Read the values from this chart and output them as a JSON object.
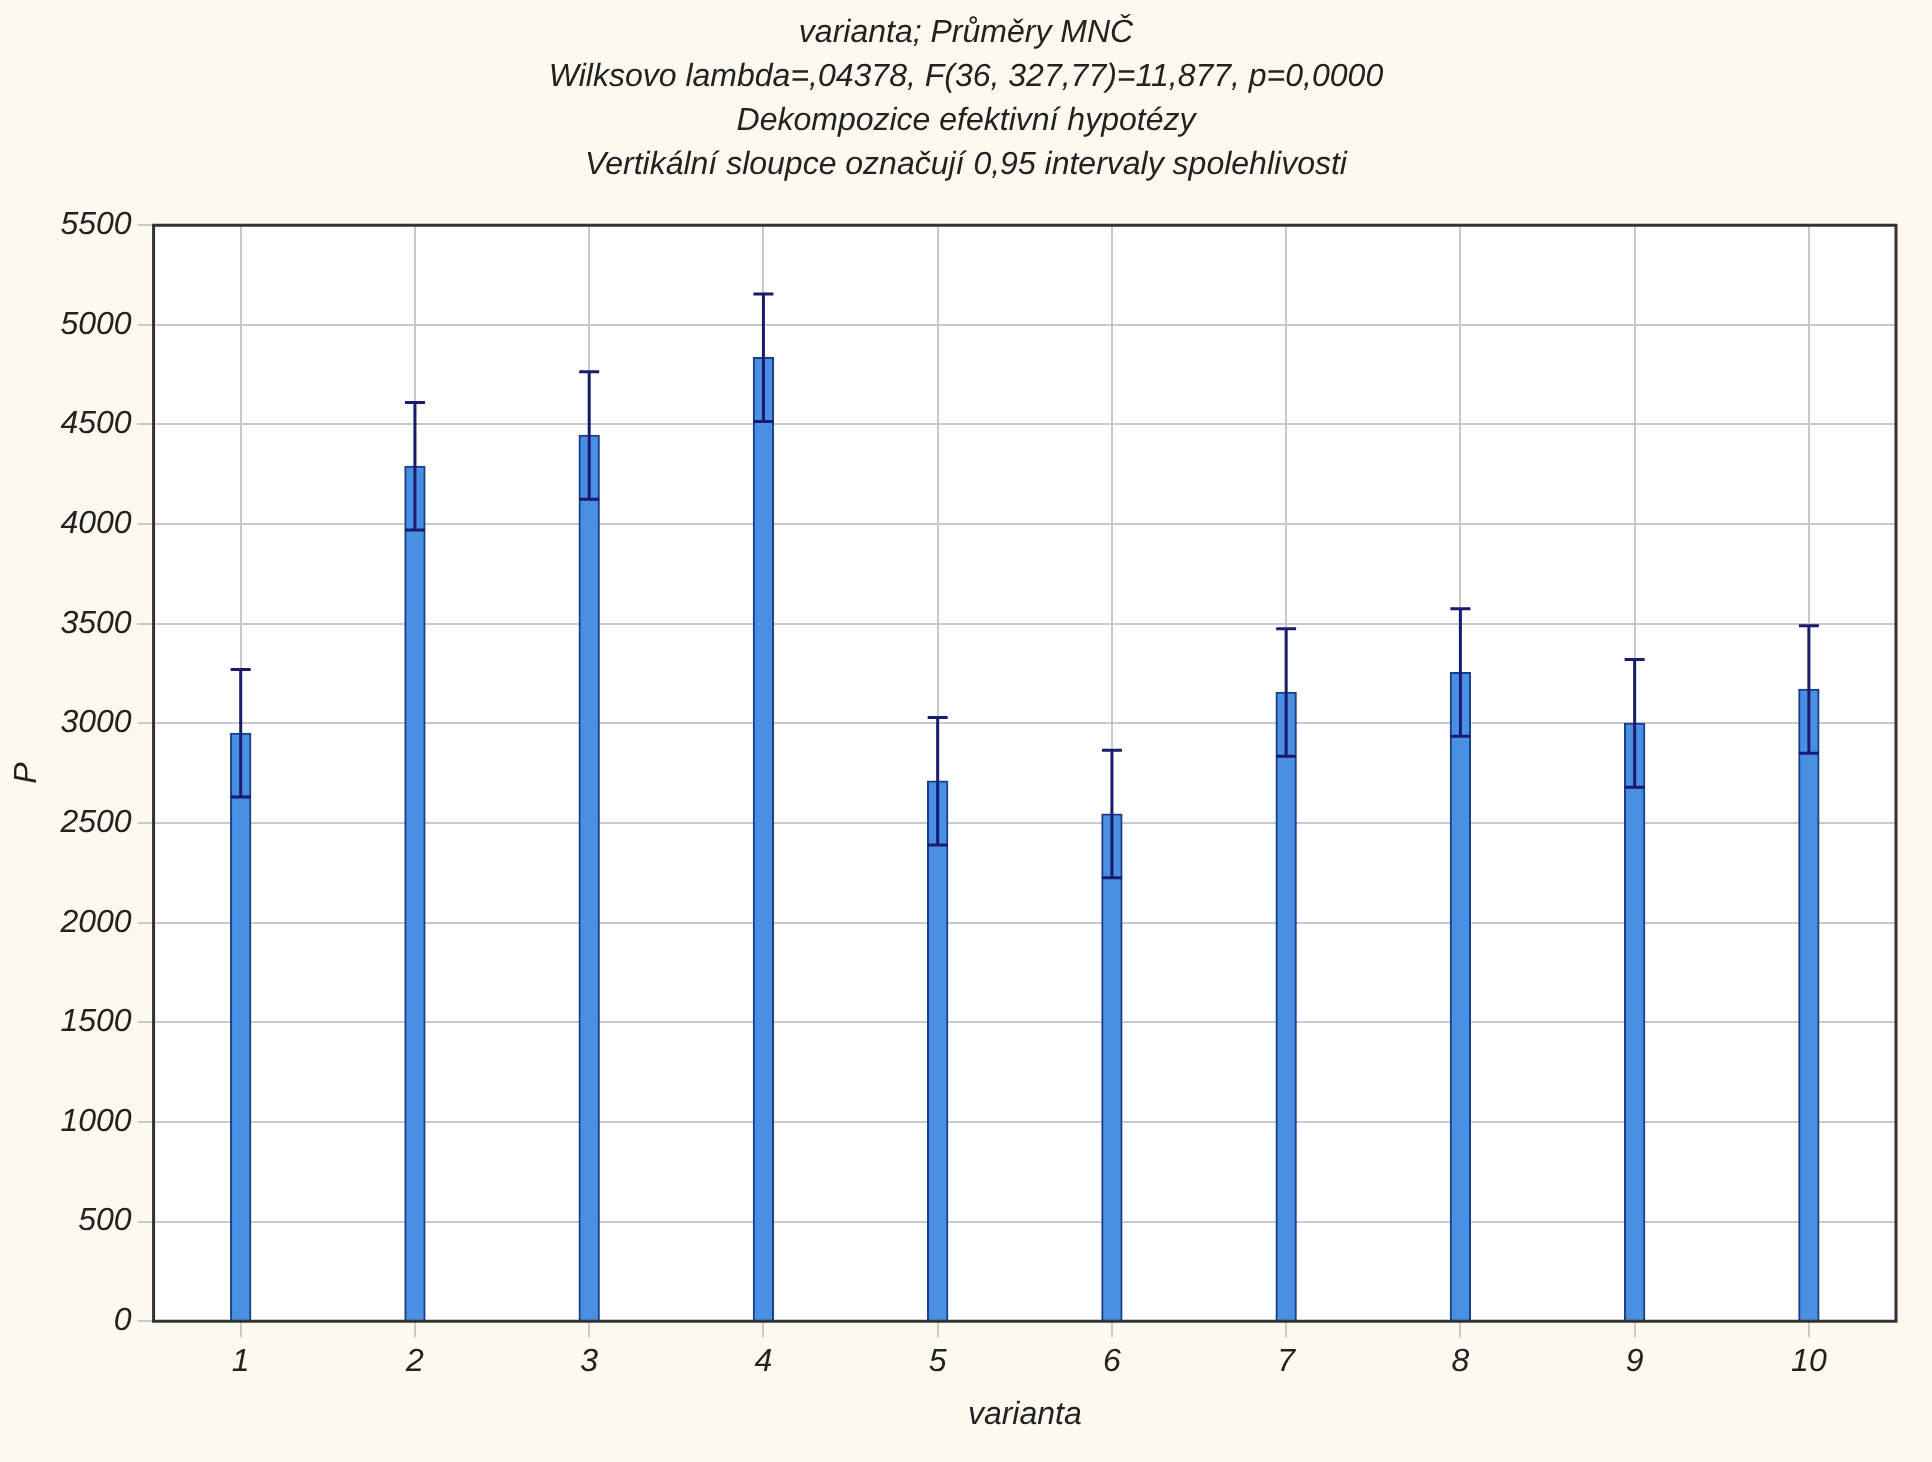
{
  "chart_data": {
    "type": "bar",
    "title": "varianta; Průměry MNČ",
    "subtitle": "Wilksovo lambda=,04378, F(36, 327,77)=11,877, p=0,0000",
    "annotations": [
      "Dekompozice efektivní hypotézy",
      "Vertikální sloupce označují 0,95 intervaly spolehlivosti"
    ],
    "xlabel": "varianta",
    "ylabel": "P",
    "categories": [
      "1",
      "2",
      "3",
      "4",
      "5",
      "6",
      "7",
      "8",
      "9",
      "10"
    ],
    "values": [
      2950,
      4290,
      4445,
      4835,
      2710,
      2545,
      3155,
      3255,
      3000,
      3170
    ],
    "errors": [
      320,
      320,
      320,
      320,
      320,
      320,
      320,
      320,
      320,
      320
    ],
    "color": "#4a90e2",
    "ylim": [
      0,
      5500
    ],
    "yticks": [
      0,
      500,
      1000,
      1500,
      2000,
      2500,
      3000,
      3500,
      4000,
      4500,
      5000,
      5500
    ],
    "grid": true
  }
}
